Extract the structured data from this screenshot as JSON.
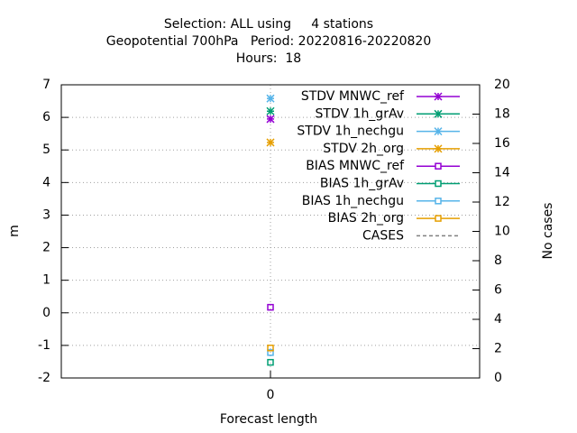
{
  "chart_data": {
    "type": "line",
    "title": [
      "Selection: ALL using     4 stations",
      "Geopotential 700hPa   Period: 20220816-20220820",
      "Hours:  18"
    ],
    "x_label": "Forecast length",
    "y_label": "m",
    "y2_label": "No cases",
    "x": [
      0
    ],
    "xlim": [
      -1,
      1
    ],
    "xticks": [
      0
    ],
    "ylim": [
      -2,
      7
    ],
    "yticks": [
      -2,
      -1,
      0,
      1,
      2,
      3,
      4,
      5,
      6,
      7
    ],
    "y2lim": [
      0,
      20
    ],
    "y2ticks": [
      0,
      2,
      4,
      6,
      8,
      10,
      12,
      14,
      16,
      18,
      20
    ],
    "grid": true,
    "legend": "top-right",
    "series": [
      {
        "name": "STDV MNWC_ref",
        "color": "#9400d3",
        "marker": "star",
        "values": [
          5.95
        ]
      },
      {
        "name": "STDV 1h_grAv",
        "color": "#009e73",
        "marker": "star",
        "values": [
          6.19
        ]
      },
      {
        "name": "STDV 1h_nechgu",
        "color": "#56b4e9",
        "marker": "star",
        "values": [
          6.58
        ]
      },
      {
        "name": "STDV 2h_org",
        "color": "#e69f00",
        "marker": "star",
        "values": [
          5.23
        ]
      },
      {
        "name": "BIAS MNWC_ref",
        "color": "#9400d3",
        "marker": "square",
        "values": [
          0.17
        ]
      },
      {
        "name": "BIAS 1h_grAv",
        "color": "#009e73",
        "marker": "square",
        "values": [
          -1.52
        ]
      },
      {
        "name": "BIAS 1h_nechgu",
        "color": "#56b4e9",
        "marker": "square",
        "values": [
          -1.22
        ]
      },
      {
        "name": "BIAS 2h_org",
        "color": "#e69f00",
        "marker": "square",
        "values": [
          -1.08
        ]
      },
      {
        "name": "CASES",
        "color": "#808080",
        "marker": "dashed",
        "axis": "y2",
        "values": [
          null
        ]
      }
    ]
  }
}
